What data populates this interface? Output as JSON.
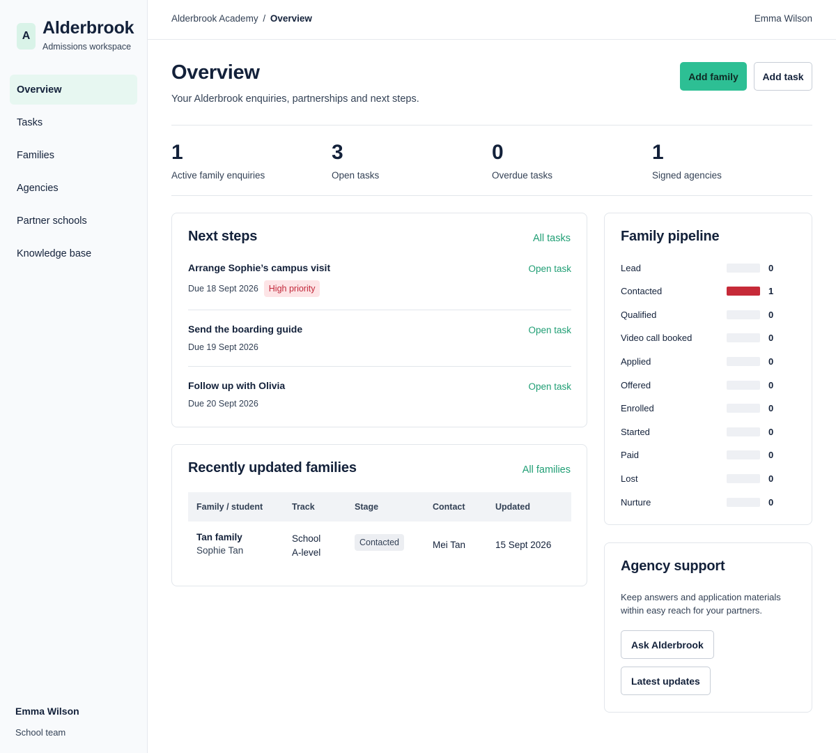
{
  "brand": {
    "logo_letter": "A",
    "name": "Alderbrook",
    "subtitle": "Admissions workspace"
  },
  "sidebar": {
    "items": [
      {
        "label": "Overview",
        "active": true
      },
      {
        "label": "Tasks"
      },
      {
        "label": "Families"
      },
      {
        "label": "Agencies"
      },
      {
        "label": "Partner schools"
      },
      {
        "label": "Knowledge base"
      }
    ],
    "user": {
      "name": "Emma Wilson",
      "role": "School team"
    }
  },
  "topbar": {
    "breadcrumb_root": "Alderbrook Academy",
    "breadcrumb_sep": "/",
    "breadcrumb_current": "Overview",
    "user": "Emma Wilson"
  },
  "header": {
    "title": "Overview",
    "subtitle": "Your Alderbrook enquiries, partnerships and next steps.",
    "add_family_label": "Add family",
    "add_task_label": "Add task"
  },
  "stats": [
    {
      "value": "1",
      "label": "Active family enquiries"
    },
    {
      "value": "3",
      "label": "Open tasks"
    },
    {
      "value": "0",
      "label": "Overdue tasks"
    },
    {
      "value": "1",
      "label": "Signed agencies"
    }
  ],
  "next_steps": {
    "title": "Next steps",
    "link": "All tasks",
    "tasks": [
      {
        "title": "Arrange Sophie’s campus visit",
        "due": "Due 18 Sept 2026",
        "badge": "High priority",
        "link": "Open task"
      },
      {
        "title": "Send the boarding guide",
        "due": "Due 19 Sept 2026",
        "link": "Open task"
      },
      {
        "title": "Follow up with Olivia",
        "due": "Due 20 Sept 2026",
        "link": "Open task"
      }
    ]
  },
  "recent_families": {
    "title": "Recently updated families",
    "link": "All families",
    "columns": [
      "Family / student",
      "Track",
      "Stage",
      "Contact",
      "Updated"
    ],
    "rows": [
      {
        "family": "Tan family",
        "student": "Sophie Tan",
        "track_line1": "School",
        "track_line2": "A-level",
        "stage": "Contacted",
        "contact": "Mei Tan",
        "updated": "15 Sept 2026"
      }
    ]
  },
  "pipeline": {
    "title": "Family pipeline",
    "bar_color": "#c62a38",
    "max": 1,
    "stages": [
      {
        "label": "Lead",
        "count": 0
      },
      {
        "label": "Contacted",
        "count": 1
      },
      {
        "label": "Qualified",
        "count": 0
      },
      {
        "label": "Video call booked",
        "count": 0
      },
      {
        "label": "Applied",
        "count": 0
      },
      {
        "label": "Offered",
        "count": 0
      },
      {
        "label": "Enrolled",
        "count": 0
      },
      {
        "label": "Started",
        "count": 0
      },
      {
        "label": "Paid",
        "count": 0
      },
      {
        "label": "Lost",
        "count": 0
      },
      {
        "label": "Nurture",
        "count": 0
      }
    ]
  },
  "agency_support": {
    "title": "Agency support",
    "text": "Keep answers and application materials within easy reach for your partners.",
    "ask_label": "Ask Alderbrook",
    "updates_label": "Latest updates"
  },
  "colors": {
    "accent": "#2dbf94",
    "link": "#1f9e74",
    "danger": "#c62a38"
  }
}
